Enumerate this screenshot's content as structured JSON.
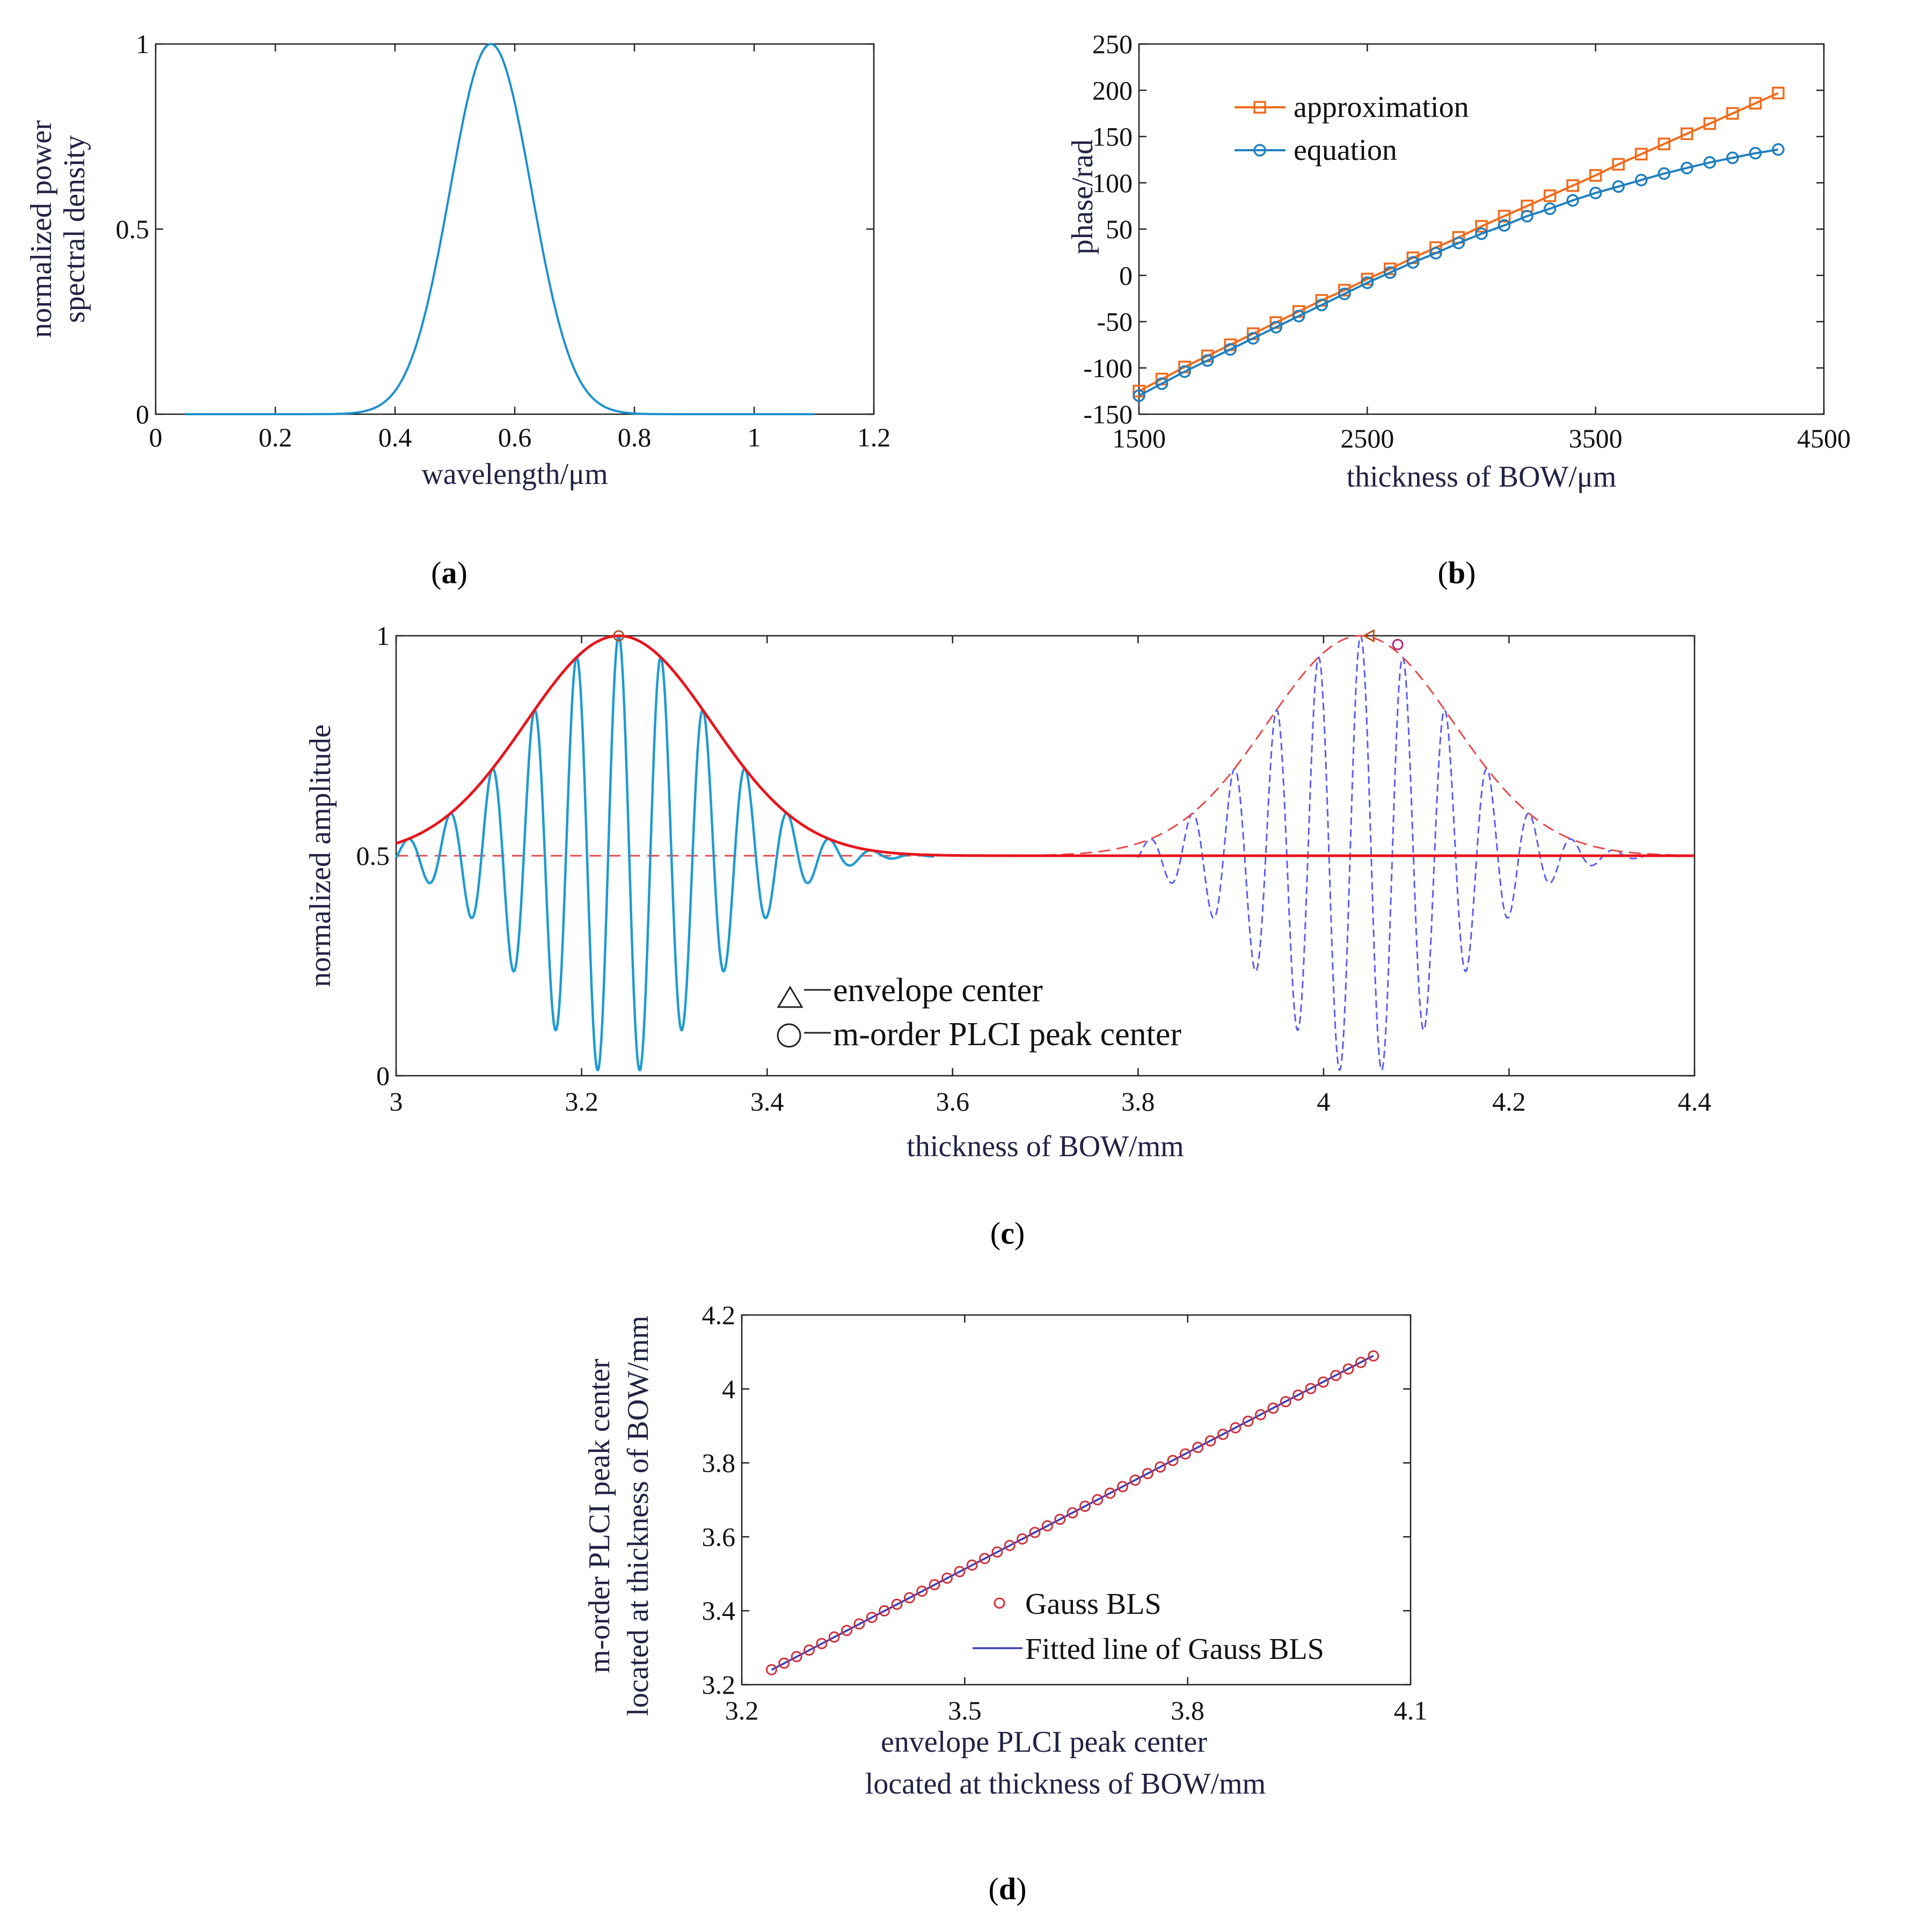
{
  "chart_data": [
    {
      "panel": "a",
      "caption": "(a)",
      "type": "line",
      "xlabel": "wavelength/μm",
      "ylabel_lines": [
        "normalized power",
        "spectral density"
      ],
      "xlim": [
        0,
        1.2
      ],
      "ylim": [
        0,
        1
      ],
      "xticks": [
        0,
        0.2,
        0.4,
        0.6,
        0.8,
        1,
        1.2
      ],
      "yticks": [
        0,
        0.5,
        1
      ],
      "grid": false,
      "series": [
        {
          "color": "#1a8fd0",
          "gaussian": {
            "center": 0.56,
            "sigma": 0.068,
            "x_range": [
              0.05,
              1.1
            ]
          }
        }
      ]
    },
    {
      "panel": "b",
      "caption": "(b)",
      "type": "line",
      "xlabel": "thickness of BOW/μm",
      "ylabel": "phase/rad",
      "xlim": [
        1500,
        4500
      ],
      "ylim": [
        -150,
        250
      ],
      "xticks": [
        1500,
        2500,
        3500,
        4500
      ],
      "yticks": [
        -150,
        -100,
        -50,
        0,
        50,
        100,
        150,
        200,
        250
      ],
      "grid": false,
      "legend": "top-left",
      "series": [
        {
          "name": "approximation",
          "color": "#f06a1b",
          "marker": "square",
          "x": [
            1500,
            1600,
            1700,
            1800,
            1900,
            2000,
            2100,
            2200,
            2300,
            2400,
            2500,
            2600,
            2700,
            2800,
            2900,
            3000,
            3100,
            3200,
            3300,
            3400,
            3500,
            3600,
            3700,
            3800,
            3900,
            4000,
            4100,
            4200,
            4300
          ],
          "y": [
            -125,
            -112,
            -99,
            -87,
            -75,
            -63,
            -51,
            -39,
            -27,
            -16,
            -4,
            7,
            19,
            30,
            41,
            53,
            64,
            75,
            86,
            97,
            108,
            120,
            131,
            142,
            153,
            164,
            175,
            186,
            197
          ]
        },
        {
          "name": "equation",
          "color": "#1f7fbf",
          "marker": "circle",
          "x": [
            1500,
            1600,
            1700,
            1800,
            1900,
            2000,
            2100,
            2200,
            2300,
            2400,
            2500,
            2600,
            2700,
            2800,
            2900,
            3000,
            3100,
            3200,
            3300,
            3400,
            3500,
            3600,
            3700,
            3800,
            3900,
            4000,
            4100,
            4200,
            4300
          ],
          "y": [
            -130,
            -117,
            -104,
            -92,
            -80,
            -68,
            -56,
            -44,
            -32,
            -20,
            -8,
            3,
            14,
            24,
            35,
            45,
            54,
            64,
            72,
            81,
            89,
            96,
            103,
            110,
            116,
            122,
            127,
            132,
            136
          ]
        }
      ]
    },
    {
      "panel": "c",
      "caption": "(c)",
      "type": "line",
      "xlabel": "thickness of BOW/mm",
      "ylabel": "normalized amplitude",
      "xlim": [
        3,
        4.4
      ],
      "ylim": [
        0,
        1
      ],
      "xticks": [
        3,
        3.2,
        3.4,
        3.6,
        3.8,
        4,
        4.2,
        4.4
      ],
      "yticks": [
        0,
        0.5,
        1
      ],
      "grid": false,
      "legend_entries": [
        "envelope center",
        "m-order PLCI peak center"
      ],
      "series": [
        {
          "role": "solid interference signal",
          "color": "#1f9bd0",
          "style": "solid",
          "center": 3.24,
          "sigma": 0.1,
          "period": 0.0455,
          "x_range": [
            3,
            3.58
          ]
        },
        {
          "role": "solid envelope",
          "color": "#e8141c",
          "style": "solid",
          "center": 3.24,
          "sigma": 0.1
        },
        {
          "role": "dashed interference signal",
          "color": "#5a5cf0",
          "style": "dashed",
          "center": 4.04,
          "sigma": 0.1,
          "period": 0.0455,
          "x_range": [
            3.8,
            4.4
          ]
        },
        {
          "role": "dashed envelope",
          "color": "#e84848",
          "style": "dashed",
          "center": 4.04,
          "sigma": 0.1
        }
      ],
      "markers": [
        {
          "shape": "triangle",
          "x": 4.05,
          "y": 1.0,
          "color": "#c84a10"
        },
        {
          "shape": "circle",
          "x": 4.08,
          "y": 0.98,
          "color": "#b0207a"
        },
        {
          "shape": "circle",
          "x": 3.24,
          "y": 1.0,
          "color": "#b05030"
        }
      ]
    },
    {
      "panel": "d",
      "caption": "(d)",
      "type": "scatter",
      "xlabel_lines": [
        "envelope PLCI peak center",
        "located at thickness of BOW/mm"
      ],
      "ylabel_lines": [
        "m-order PLCI peak center",
        "located at thickness of BOW/mm"
      ],
      "xlim": [
        3.2,
        4.1
      ],
      "ylim": [
        3.2,
        4.2
      ],
      "xticks": [
        3.2,
        3.5,
        3.8,
        4.1
      ],
      "yticks": [
        3.2,
        3.4,
        3.6,
        3.8,
        4,
        4.2
      ],
      "grid": false,
      "legend": "center-right",
      "series": [
        {
          "name": "Gauss BLS",
          "color": "#d0303a",
          "marker": "circle",
          "x_start": 3.24,
          "x_end": 4.05,
          "count": 49,
          "slope": 1.048,
          "intercept": -0.155
        },
        {
          "name": "Fitted line of Gauss BLS",
          "color": "#3b3bb8",
          "style": "solid",
          "x": [
            3.24,
            4.05
          ],
          "y": [
            3.24,
            4.09
          ]
        }
      ]
    }
  ]
}
